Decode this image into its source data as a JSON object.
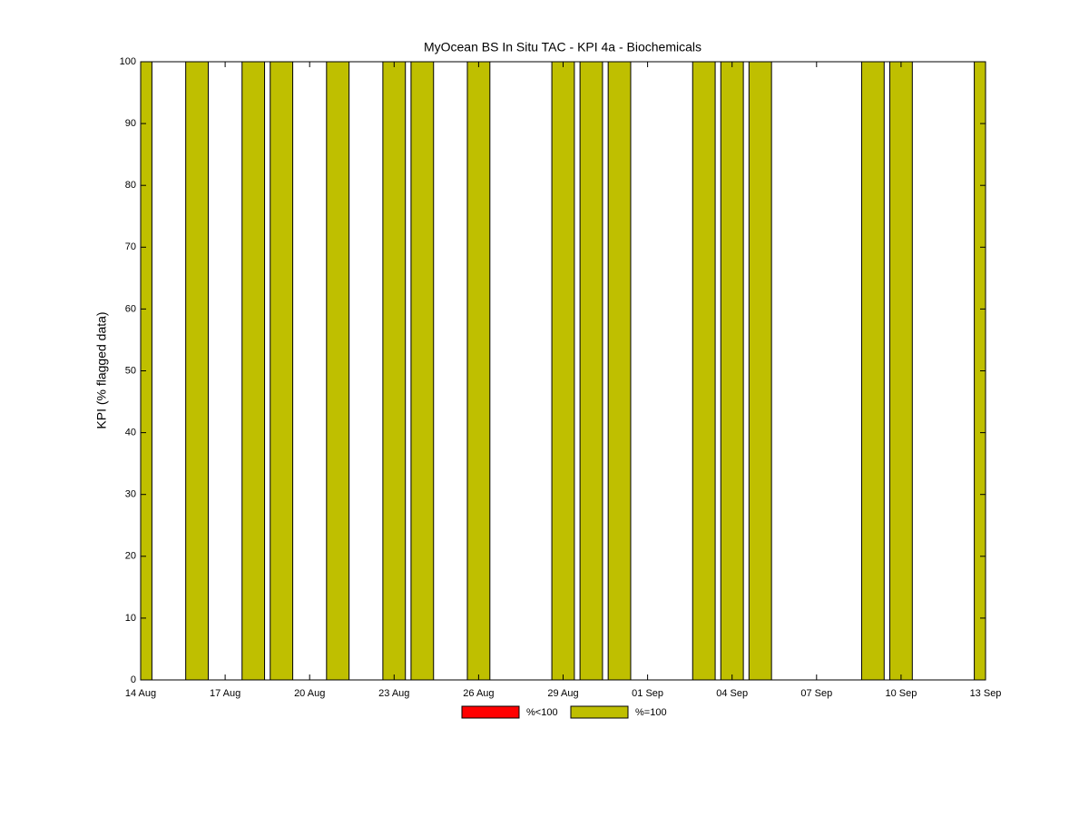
{
  "chart_data": {
    "type": "bar",
    "title": "MyOcean  BS In Situ TAC - KPI 4a - Biochemicals",
    "y_label": "KPI (% flagged data)",
    "x": [
      "14 Aug",
      "16 Aug",
      "18 Aug",
      "19 Aug",
      "21 Aug",
      "23 Aug",
      "24 Aug",
      "26 Aug",
      "29 Aug",
      "30 Aug",
      "31 Aug",
      "03 Sep",
      "04 Sep",
      "05 Sep",
      "09 Sep",
      "10 Sep",
      "13 Sep"
    ],
    "series": [
      {
        "name": "%<100",
        "color": "#ff0000",
        "values": [
          null,
          null,
          null,
          null,
          null,
          null,
          null,
          null,
          null,
          null,
          null,
          null,
          null,
          null,
          null,
          null,
          null
        ]
      },
      {
        "name": "%=100",
        "color": "#bfbf00",
        "values": [
          100,
          100,
          100,
          100,
          100,
          100,
          100,
          100,
          100,
          100,
          100,
          100,
          100,
          100,
          100,
          100,
          100
        ]
      }
    ],
    "xlim": [
      "14 Aug",
      "13 Sep"
    ],
    "xticks": [
      "14 Aug",
      "17 Aug",
      "20 Aug",
      "23 Aug",
      "26 Aug",
      "29 Aug",
      "01 Sep",
      "04 Sep",
      "07 Sep",
      "10 Sep",
      "13 Sep"
    ],
    "ylim": [
      0,
      100
    ],
    "yticks": [
      0,
      10,
      20,
      30,
      40,
      50,
      60,
      70,
      80,
      90,
      100
    ],
    "legend": "bottom",
    "grid": false
  }
}
